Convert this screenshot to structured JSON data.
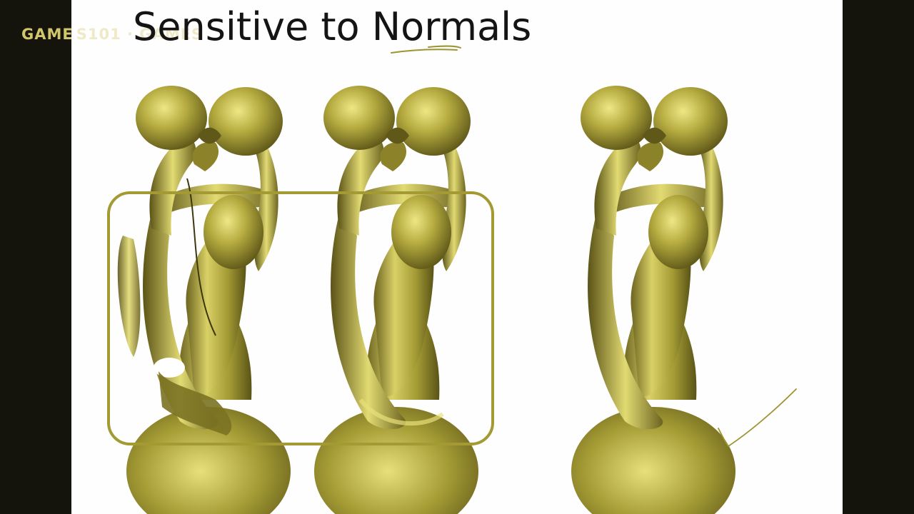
{
  "slide": {
    "title": "Sensitive to Normals",
    "watermark": "GAME",
    "watermark_faded": "S101 · GAMES"
  },
  "figures": [
    {
      "name": "statue-reconstruction-1",
      "highlighted": true
    },
    {
      "name": "statue-reconstruction-2",
      "highlighted": true
    },
    {
      "name": "statue-reconstruction-3",
      "highlighted": false
    }
  ],
  "colors": {
    "statue": "#a39a34",
    "statue_light": "#e8e07a",
    "statue_dark": "#4a4410",
    "highlight_box": "#a39a34",
    "annotation_ink": "#9c9430",
    "background": "#fefefe",
    "border": "#14140d"
  }
}
